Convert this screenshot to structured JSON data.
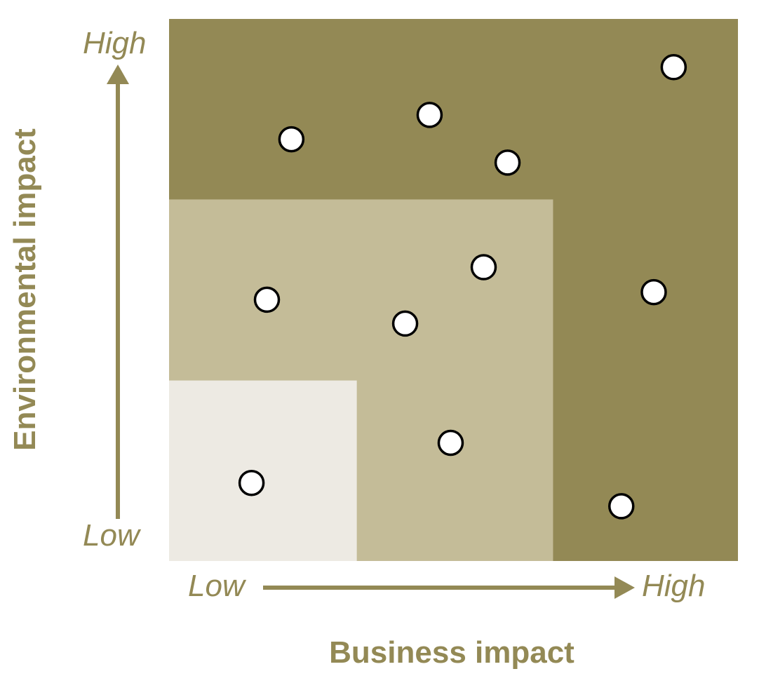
{
  "chart_data": {
    "type": "scatter",
    "xlabel": "Business impact",
    "ylabel": "Environmental impact",
    "x_axis": {
      "low_label": "Low",
      "high_label": "High"
    },
    "y_axis": {
      "low_label": "Low",
      "high_label": "High"
    },
    "xlim": [
      0,
      1
    ],
    "ylim": [
      0,
      1
    ],
    "grid": false,
    "zones": [
      {
        "name": "",
        "x_max": 1.0,
        "y_max": 1.0,
        "color": "#938955"
      },
      {
        "name": "",
        "x_max": 0.675,
        "y_max": 0.667,
        "color": "#c4bc98"
      },
      {
        "name": "",
        "x_max": 0.33,
        "y_max": 0.333,
        "color": "#edeae3"
      }
    ],
    "points": [
      {
        "x": 0.215,
        "y": 0.778
      },
      {
        "x": 0.458,
        "y": 0.823
      },
      {
        "x": 0.595,
        "y": 0.735
      },
      {
        "x": 0.887,
        "y": 0.911
      },
      {
        "x": 0.172,
        "y": 0.482
      },
      {
        "x": 0.415,
        "y": 0.438
      },
      {
        "x": 0.553,
        "y": 0.542
      },
      {
        "x": 0.852,
        "y": 0.496
      },
      {
        "x": 0.145,
        "y": 0.144
      },
      {
        "x": 0.495,
        "y": 0.218
      },
      {
        "x": 0.795,
        "y": 0.101
      }
    ]
  },
  "colors": {
    "accent": "#938955",
    "marker_fill": "#ffffff",
    "marker_stroke": "#000000"
  }
}
